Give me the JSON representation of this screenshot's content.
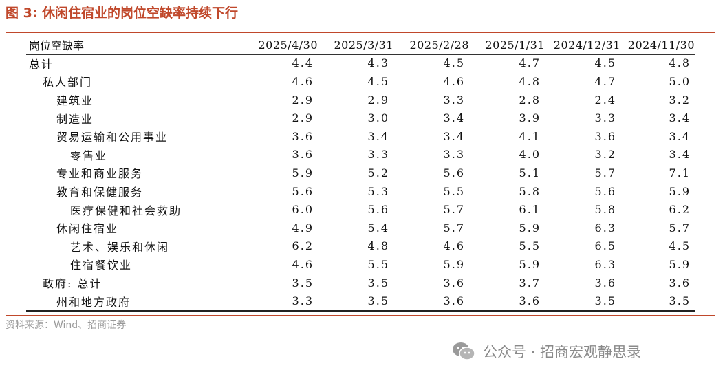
{
  "title": "图 3:  休闲住宿业的岗位空缺率持续下行",
  "table": {
    "header_label": "岗位空缺率",
    "columns": [
      "2025/4/30",
      "2025/3/31",
      "2025/2/28",
      "2025/1/31",
      "2024/12/31",
      "2024/11/30"
    ],
    "rows": [
      {
        "label": "总计",
        "indent": 0,
        "values": [
          "4.4",
          "4.3",
          "4.5",
          "4.7",
          "4.5",
          "4.8"
        ]
      },
      {
        "label": "私人部门",
        "indent": 1,
        "values": [
          "4.6",
          "4.5",
          "4.6",
          "4.8",
          "4.7",
          "5.0"
        ]
      },
      {
        "label": "建筑业",
        "indent": 2,
        "values": [
          "2.9",
          "2.9",
          "3.3",
          "2.8",
          "2.4",
          "3.2"
        ]
      },
      {
        "label": "制造业",
        "indent": 2,
        "values": [
          "2.9",
          "3.0",
          "3.4",
          "3.9",
          "3.3",
          "3.4"
        ]
      },
      {
        "label": "贸易运输和公用事业",
        "indent": 2,
        "values": [
          "3.6",
          "3.4",
          "3.4",
          "4.1",
          "3.6",
          "3.4"
        ]
      },
      {
        "label": "零售业",
        "indent": 3,
        "values": [
          "3.6",
          "3.3",
          "3.3",
          "4.0",
          "3.2",
          "3.4"
        ]
      },
      {
        "label": "专业和商业服务",
        "indent": 2,
        "values": [
          "5.9",
          "5.2",
          "5.6",
          "5.1",
          "5.7",
          "7.1"
        ]
      },
      {
        "label": "教育和保健服务",
        "indent": 2,
        "values": [
          "5.6",
          "5.3",
          "5.5",
          "5.8",
          "5.6",
          "5.9"
        ]
      },
      {
        "label": "医疗保健和社会救助",
        "indent": 3,
        "values": [
          "6.0",
          "5.6",
          "5.7",
          "6.1",
          "5.8",
          "6.2"
        ]
      },
      {
        "label": "休闲住宿业",
        "indent": 2,
        "values": [
          "4.9",
          "5.4",
          "5.7",
          "5.9",
          "6.3",
          "5.7"
        ]
      },
      {
        "label": "艺术、娱乐和休闲",
        "indent": 3,
        "values": [
          "6.2",
          "4.8",
          "4.6",
          "5.5",
          "6.5",
          "4.5"
        ]
      },
      {
        "label": "住宿餐饮业",
        "indent": 3,
        "values": [
          "4.6",
          "5.5",
          "5.9",
          "5.9",
          "6.3",
          "5.9"
        ]
      },
      {
        "label": "政府: 总计",
        "indent": 1,
        "values": [
          "3.5",
          "3.5",
          "3.6",
          "3.7",
          "3.6",
          "3.6"
        ]
      },
      {
        "label": "州和地方政府",
        "indent": 2,
        "values": [
          "3.3",
          "3.5",
          "3.6",
          "3.6",
          "3.5",
          "3.5"
        ]
      }
    ]
  },
  "source": "资料来源：Wind、招商证券",
  "watermark": {
    "icon": "wechat-icon",
    "text": "公众号 · 招商宏观静思录"
  },
  "colors": {
    "accent": "#c0482b",
    "muted_text": "#999999"
  }
}
